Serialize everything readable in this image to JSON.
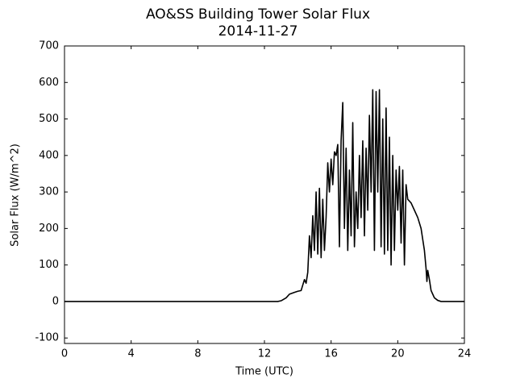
{
  "chart_data": {
    "type": "line",
    "title": "AO&SS Building Tower Solar Flux",
    "subtitle": "2014-11-27",
    "x_label": "Time (UTC)",
    "y_label": "Solar Flux (W/m^2)",
    "x": [
      0,
      12.8,
      13.0,
      13.3,
      13.5,
      13.8,
      14.0,
      14.2,
      14.3,
      14.4,
      14.5,
      14.6,
      14.7,
      14.8,
      14.9,
      15.0,
      15.1,
      15.2,
      15.3,
      15.4,
      15.5,
      15.6,
      15.7,
      15.8,
      15.9,
      16.0,
      16.1,
      16.2,
      16.3,
      16.4,
      16.5,
      16.6,
      16.7,
      16.8,
      16.9,
      17.0,
      17.1,
      17.2,
      17.3,
      17.4,
      17.5,
      17.6,
      17.7,
      17.8,
      17.9,
      18.0,
      18.1,
      18.2,
      18.3,
      18.4,
      18.5,
      18.6,
      18.7,
      18.8,
      18.9,
      19.0,
      19.1,
      19.2,
      19.3,
      19.4,
      19.5,
      19.6,
      19.7,
      19.8,
      19.9,
      20.0,
      20.1,
      20.2,
      20.3,
      20.4,
      20.5,
      20.6,
      20.8,
      21.0,
      21.2,
      21.4,
      21.5,
      21.6,
      21.7,
      21.75,
      21.8,
      21.9,
      22.0,
      22.1,
      22.2,
      22.4,
      22.6,
      24
    ],
    "series": [
      {
        "color": "#000000",
        "values": [
          0,
          0,
          2,
          10,
          20,
          25,
          28,
          30,
          45,
          60,
          50,
          80,
          180,
          120,
          235,
          140,
          300,
          130,
          310,
          120,
          280,
          140,
          230,
          380,
          300,
          390,
          320,
          410,
          400,
          430,
          150,
          440,
          545,
          200,
          420,
          140,
          360,
          180,
          490,
          150,
          300,
          200,
          400,
          230,
          440,
          180,
          420,
          250,
          510,
          300,
          580,
          140,
          575,
          300,
          580,
          150,
          500,
          130,
          530,
          140,
          450,
          100,
          400,
          140,
          360,
          250,
          370,
          160,
          360,
          100,
          320,
          280,
          270,
          250,
          230,
          200,
          170,
          140,
          90,
          55,
          85,
          60,
          30,
          20,
          10,
          3,
          0,
          0
        ]
      }
    ],
    "xlim": [
      0,
      24
    ],
    "xticks": [
      0,
      4,
      8,
      12,
      16,
      20,
      24
    ],
    "ylim": [
      -115,
      700
    ],
    "yticks": [
      -100,
      0,
      100,
      200,
      300,
      400,
      500,
      600,
      700
    ]
  }
}
